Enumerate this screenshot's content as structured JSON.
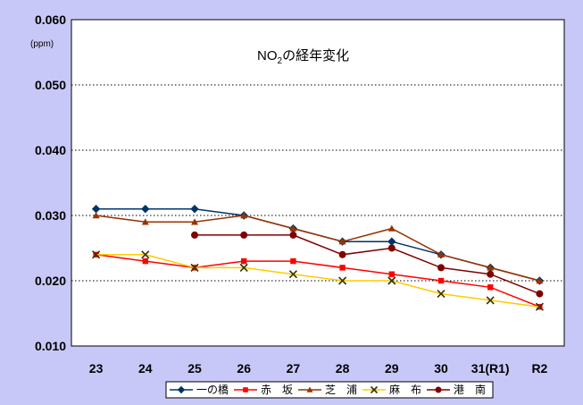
{
  "chart_data": {
    "type": "line",
    "title": "NO",
    "title_sub": "2",
    "title_suffix": "の経年変化",
    "unit_label": "(ppm)",
    "categories": [
      "23",
      "24",
      "25",
      "26",
      "27",
      "28",
      "29",
      "30",
      "31(R1)",
      "R2"
    ],
    "ylim": [
      0.01,
      0.06
    ],
    "yticks": [
      "0.010",
      "0.020",
      "0.030",
      "0.040",
      "0.050",
      "0.060"
    ],
    "grid": true,
    "legend_position": "bottom",
    "series": [
      {
        "name": "一の橋",
        "color": "#003366",
        "marker": "diamond",
        "values": [
          0.031,
          0.031,
          0.031,
          0.03,
          0.028,
          0.026,
          0.026,
          0.024,
          0.022,
          0.02
        ]
      },
      {
        "name": "赤　坂",
        "color": "#ff0000",
        "marker": "square",
        "values": [
          0.024,
          0.023,
          0.022,
          0.023,
          0.023,
          0.022,
          0.021,
          0.02,
          0.019,
          0.016
        ]
      },
      {
        "name": "芝　浦",
        "color": "#993300",
        "marker": "triangle",
        "values": [
          0.03,
          0.029,
          0.029,
          0.03,
          0.028,
          0.026,
          0.028,
          0.024,
          0.022,
          0.02
        ]
      },
      {
        "name": "麻　布",
        "color": "#ffcc00",
        "marker": "x",
        "values": [
          0.024,
          0.024,
          0.022,
          0.022,
          0.021,
          0.02,
          0.02,
          0.018,
          0.017,
          0.016
        ]
      },
      {
        "name": "港　南",
        "color": "#800000",
        "marker": "circle",
        "values": [
          null,
          null,
          0.027,
          0.027,
          0.027,
          0.024,
          0.025,
          0.022,
          0.021,
          0.018
        ]
      }
    ]
  }
}
